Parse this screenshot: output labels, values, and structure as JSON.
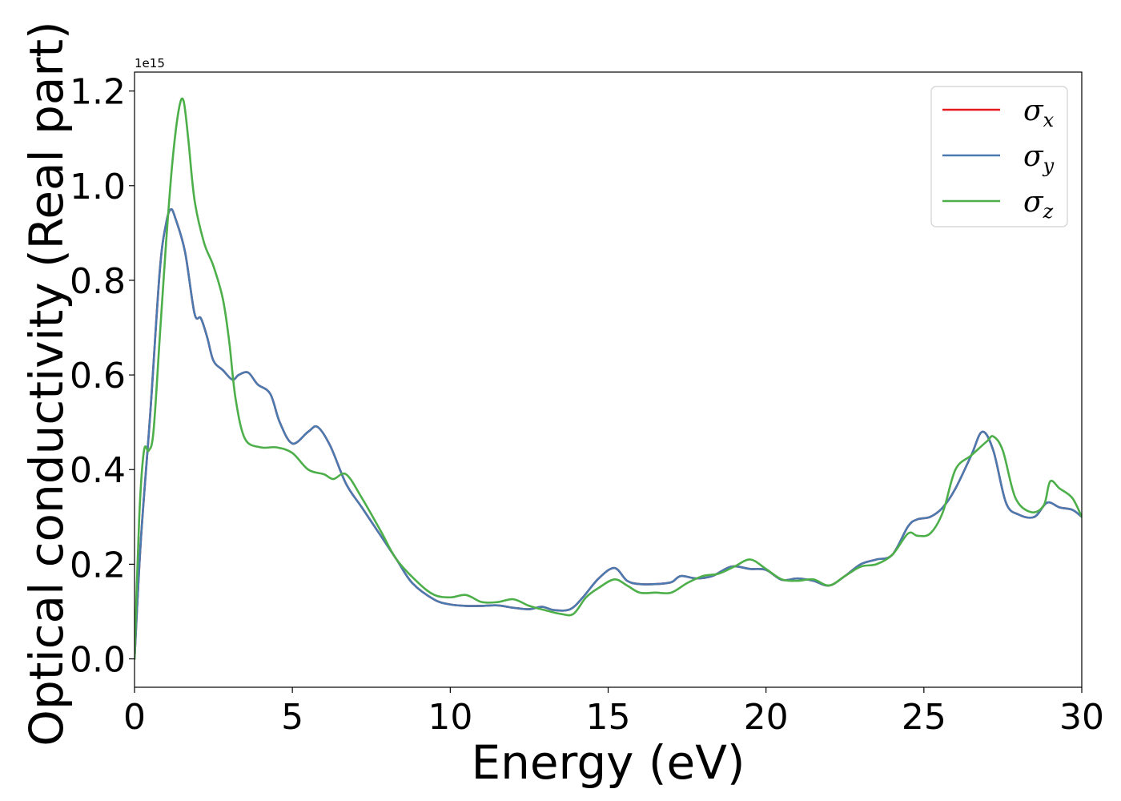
{
  "chart_data": {
    "type": "line",
    "xlabel": "Energy (eV)",
    "ylabel": "Optical conductivity (Real part)",
    "y_offset_label": "1e15",
    "xlim": [
      0,
      30
    ],
    "ylim": [
      -0.06,
      1.24
    ],
    "xticks": [
      0,
      5,
      10,
      15,
      20,
      25,
      30
    ],
    "xtick_labels": [
      "0",
      "5",
      "10",
      "15",
      "20",
      "25",
      "30"
    ],
    "yticks": [
      0.0,
      0.2,
      0.4,
      0.6,
      0.8,
      1.0,
      1.2
    ],
    "ytick_labels": [
      "0.0",
      "0.2",
      "0.4",
      "0.6",
      "0.8",
      "1.0",
      "1.2"
    ],
    "grid": false,
    "legend_position": "top-right",
    "series": [
      {
        "name": "σx",
        "sym": "σ",
        "sub": "x",
        "color": "#e41a1c",
        "x": [
          0,
          0.2,
          0.5,
          0.8,
          1.0,
          1.15,
          1.3,
          1.6,
          1.9,
          2.1,
          2.3,
          2.5,
          2.8,
          3.1,
          3.3,
          3.6,
          3.9,
          4.3,
          4.6,
          5.0,
          5.5,
          5.8,
          6.2,
          6.7,
          7.2,
          7.8,
          8.3,
          8.8,
          9.5,
          10.0,
          10.5,
          11.0,
          11.5,
          12.0,
          12.5,
          12.9,
          13.3,
          13.8,
          14.2,
          14.7,
          15.2,
          15.6,
          16.0,
          16.5,
          17.0,
          17.3,
          17.8,
          18.3,
          18.9,
          19.5,
          20.0,
          20.5,
          21.0,
          21.5,
          22.0,
          22.5,
          23.0,
          23.5,
          24.0,
          24.5,
          24.8,
          25.2,
          25.6,
          26.0,
          26.5,
          26.85,
          27.2,
          27.6,
          28.0,
          28.5,
          28.9,
          29.3,
          29.7,
          30.0
        ],
        "y": [
          0,
          0.25,
          0.52,
          0.82,
          0.92,
          0.95,
          0.93,
          0.86,
          0.73,
          0.72,
          0.68,
          0.63,
          0.61,
          0.59,
          0.6,
          0.605,
          0.58,
          0.56,
          0.5,
          0.455,
          0.48,
          0.49,
          0.45,
          0.37,
          0.32,
          0.26,
          0.21,
          0.16,
          0.125,
          0.115,
          0.112,
          0.112,
          0.113,
          0.108,
          0.105,
          0.11,
          0.103,
          0.105,
          0.13,
          0.17,
          0.192,
          0.165,
          0.158,
          0.158,
          0.162,
          0.175,
          0.17,
          0.175,
          0.195,
          0.19,
          0.188,
          0.167,
          0.17,
          0.165,
          0.155,
          0.175,
          0.2,
          0.21,
          0.22,
          0.28,
          0.295,
          0.3,
          0.32,
          0.36,
          0.43,
          0.48,
          0.44,
          0.33,
          0.305,
          0.3,
          0.33,
          0.32,
          0.315,
          0.3
        ]
      },
      {
        "name": "σy",
        "sym": "σ",
        "sub": "y",
        "color": "#4a7ab0",
        "x": [
          0,
          0.2,
          0.5,
          0.8,
          1.0,
          1.15,
          1.3,
          1.6,
          1.9,
          2.1,
          2.3,
          2.5,
          2.8,
          3.1,
          3.3,
          3.6,
          3.9,
          4.3,
          4.6,
          5.0,
          5.5,
          5.8,
          6.2,
          6.7,
          7.2,
          7.8,
          8.3,
          8.8,
          9.5,
          10.0,
          10.5,
          11.0,
          11.5,
          12.0,
          12.5,
          12.9,
          13.3,
          13.8,
          14.2,
          14.7,
          15.2,
          15.6,
          16.0,
          16.5,
          17.0,
          17.3,
          17.8,
          18.3,
          18.9,
          19.5,
          20.0,
          20.5,
          21.0,
          21.5,
          22.0,
          22.5,
          23.0,
          23.5,
          24.0,
          24.5,
          24.8,
          25.2,
          25.6,
          26.0,
          26.5,
          26.85,
          27.2,
          27.6,
          28.0,
          28.5,
          28.9,
          29.3,
          29.7,
          30.0
        ],
        "y": [
          0,
          0.25,
          0.52,
          0.82,
          0.92,
          0.95,
          0.93,
          0.86,
          0.73,
          0.72,
          0.68,
          0.63,
          0.61,
          0.59,
          0.6,
          0.605,
          0.58,
          0.56,
          0.5,
          0.455,
          0.48,
          0.49,
          0.45,
          0.37,
          0.32,
          0.26,
          0.21,
          0.16,
          0.125,
          0.115,
          0.112,
          0.112,
          0.113,
          0.108,
          0.105,
          0.11,
          0.103,
          0.105,
          0.13,
          0.17,
          0.192,
          0.165,
          0.158,
          0.158,
          0.162,
          0.175,
          0.17,
          0.175,
          0.195,
          0.19,
          0.188,
          0.167,
          0.17,
          0.165,
          0.155,
          0.175,
          0.2,
          0.21,
          0.22,
          0.28,
          0.295,
          0.3,
          0.32,
          0.36,
          0.43,
          0.48,
          0.44,
          0.33,
          0.305,
          0.3,
          0.33,
          0.32,
          0.315,
          0.3
        ]
      },
      {
        "name": "σz",
        "sym": "σ",
        "sub": "z",
        "color": "#4daf4a",
        "x": [
          0,
          0.15,
          0.3,
          0.45,
          0.6,
          0.8,
          1.0,
          1.2,
          1.4,
          1.55,
          1.7,
          1.9,
          2.2,
          2.5,
          2.8,
          3.0,
          3.2,
          3.5,
          4.0,
          4.5,
          5.0,
          5.5,
          6.0,
          6.3,
          6.7,
          7.2,
          7.8,
          8.3,
          9.0,
          9.5,
          10.0,
          10.5,
          11.0,
          11.5,
          12.0,
          12.5,
          13.0,
          13.5,
          13.9,
          14.3,
          14.7,
          15.2,
          15.6,
          16.0,
          16.5,
          17.0,
          17.5,
          18.0,
          18.5,
          19.0,
          19.5,
          20.0,
          20.5,
          21.0,
          21.5,
          22.0,
          22.5,
          23.0,
          23.5,
          24.0,
          24.5,
          24.8,
          25.2,
          25.6,
          26.0,
          26.5,
          27.0,
          27.2,
          27.5,
          27.9,
          28.4,
          28.8,
          29.0,
          29.3,
          29.7,
          30.0
        ],
        "y": [
          0,
          0.3,
          0.44,
          0.44,
          0.48,
          0.68,
          0.88,
          1.05,
          1.16,
          1.18,
          1.1,
          0.97,
          0.88,
          0.83,
          0.76,
          0.67,
          0.55,
          0.465,
          0.447,
          0.447,
          0.435,
          0.4,
          0.39,
          0.38,
          0.39,
          0.34,
          0.27,
          0.21,
          0.16,
          0.135,
          0.13,
          0.135,
          0.12,
          0.12,
          0.126,
          0.112,
          0.103,
          0.095,
          0.095,
          0.13,
          0.15,
          0.168,
          0.155,
          0.14,
          0.14,
          0.14,
          0.16,
          0.175,
          0.18,
          0.195,
          0.21,
          0.19,
          0.168,
          0.165,
          0.168,
          0.155,
          0.175,
          0.195,
          0.2,
          0.22,
          0.265,
          0.26,
          0.265,
          0.31,
          0.4,
          0.43,
          0.46,
          0.47,
          0.44,
          0.34,
          0.31,
          0.325,
          0.375,
          0.36,
          0.34,
          0.3
        ]
      }
    ]
  }
}
